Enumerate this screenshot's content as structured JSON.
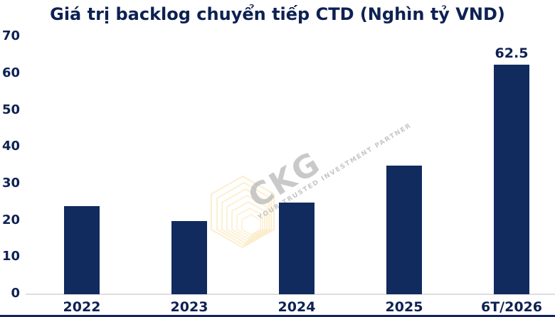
{
  "title": "Giá trị backlog chuyển tiếp CTD (Nghìn tỷ VND)",
  "watermark": {
    "logo_text": "CKG",
    "tagline": "YOUR TRUSTED INVESTMENT PARTNER",
    "hexagon_icon": "hexagon-pattern-icon",
    "gold": "#F2C14E",
    "gray": "#BCBCBC"
  },
  "colors": {
    "bar": "#112B5E",
    "text": "#0D2152",
    "axis_line": "#DEDEDE",
    "background": "#FFFFFF",
    "bottom_strip": "#12255C"
  },
  "chart_data": {
    "type": "bar",
    "title": "Giá trị backlog chuyển tiếp CTD (Nghìn tỷ VND)",
    "categories": [
      "2022",
      "2023",
      "2024",
      "2025",
      "6T/2026"
    ],
    "values": [
      24,
      20,
      25,
      35,
      62.5
    ],
    "data_labels": [
      "",
      "",
      "",
      "",
      "62.5"
    ],
    "xlabel": "",
    "ylabel": "",
    "ylim": [
      0,
      70
    ],
    "yticks": [
      0,
      10,
      20,
      30,
      40,
      50,
      60,
      70
    ],
    "grid": false,
    "legend": "none",
    "bar_color": "#112B5E"
  }
}
